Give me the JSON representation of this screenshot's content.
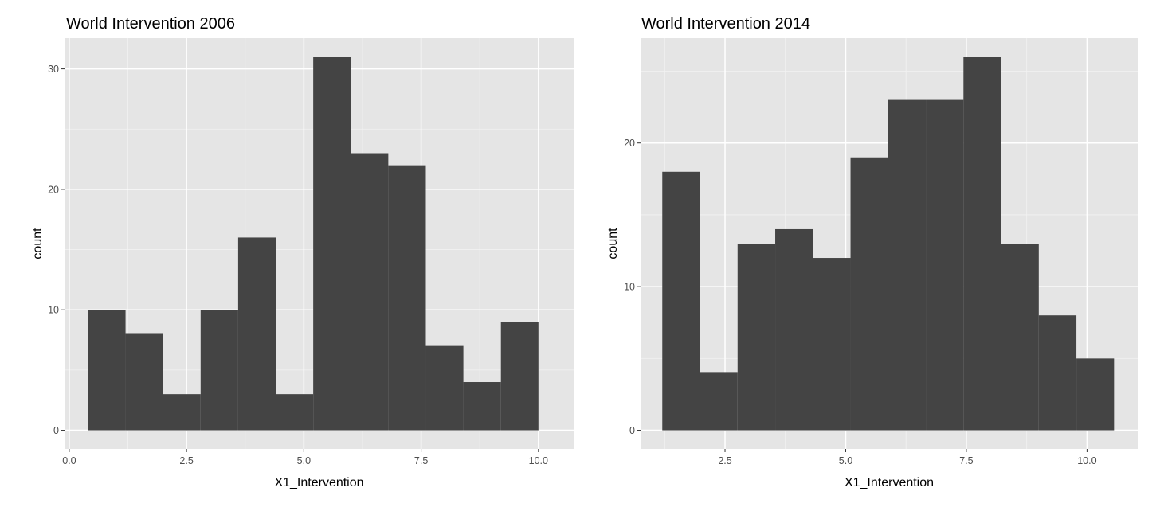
{
  "chart_data": [
    {
      "type": "bar",
      "title": "World Intervention 2006",
      "xlabel": "X1_Intervention",
      "ylabel": "count",
      "xlim": [
        -0.1,
        10.75
      ],
      "ylim": [
        -1.55,
        32.55
      ],
      "x_ticks": [
        0.0,
        2.5,
        5.0,
        7.5,
        10.0
      ],
      "x_tick_labels": [
        "0.0",
        "2.5",
        "5.0",
        "7.5",
        "10.0"
      ],
      "y_ticks": [
        0,
        10,
        20,
        30
      ],
      "y_tick_labels": [
        "0",
        "10",
        "20",
        "30"
      ],
      "bins": [
        {
          "x0": 0.4,
          "x1": 1.2,
          "count": 10
        },
        {
          "x0": 1.2,
          "x1": 2.0,
          "count": 8
        },
        {
          "x0": 2.0,
          "x1": 2.8,
          "count": 3
        },
        {
          "x0": 2.8,
          "x1": 3.6,
          "count": 10
        },
        {
          "x0": 3.6,
          "x1": 4.4,
          "count": 16
        },
        {
          "x0": 4.4,
          "x1": 5.2,
          "count": 3
        },
        {
          "x0": 5.2,
          "x1": 6.0,
          "count": 31
        },
        {
          "x0": 6.0,
          "x1": 6.8,
          "count": 23
        },
        {
          "x0": 6.8,
          "x1": 7.6,
          "count": 22
        },
        {
          "x0": 7.6,
          "x1": 8.4,
          "count": 7
        },
        {
          "x0": 8.4,
          "x1": 9.2,
          "count": 4
        },
        {
          "x0": 9.2,
          "x1": 10.0,
          "count": 9
        }
      ],
      "bar_color": "#444444",
      "panel_background": "#e5e5e5",
      "grid": true
    },
    {
      "type": "bar",
      "title": "World Intervention 2014",
      "xlabel": "X1_Intervention",
      "ylabel": "count",
      "xlim": [
        0.75,
        11.05
      ],
      "ylim": [
        -1.3,
        27.3
      ],
      "x_ticks": [
        2.5,
        5.0,
        7.5,
        10.0
      ],
      "x_tick_labels": [
        "2.5",
        "5.0",
        "7.5",
        "10.0"
      ],
      "y_ticks": [
        0,
        10,
        20
      ],
      "y_tick_labels": [
        "0",
        "10",
        "20"
      ],
      "bins": [
        {
          "x0": 1.2,
          "x1": 1.98,
          "count": 18
        },
        {
          "x0": 1.98,
          "x1": 2.76,
          "count": 4
        },
        {
          "x0": 2.76,
          "x1": 3.54,
          "count": 13
        },
        {
          "x0": 3.54,
          "x1": 4.32,
          "count": 14
        },
        {
          "x0": 4.32,
          "x1": 5.1,
          "count": 12
        },
        {
          "x0": 5.1,
          "x1": 5.88,
          "count": 19
        },
        {
          "x0": 5.88,
          "x1": 6.66,
          "count": 23
        },
        {
          "x0": 6.66,
          "x1": 7.44,
          "count": 23
        },
        {
          "x0": 7.44,
          "x1": 8.22,
          "count": 26
        },
        {
          "x0": 8.22,
          "x1": 9.0,
          "count": 13
        },
        {
          "x0": 9.0,
          "x1": 9.78,
          "count": 8
        },
        {
          "x0": 9.78,
          "x1": 10.56,
          "count": 5
        }
      ],
      "bar_color": "#444444",
      "panel_background": "#e5e5e5",
      "grid": true
    }
  ]
}
